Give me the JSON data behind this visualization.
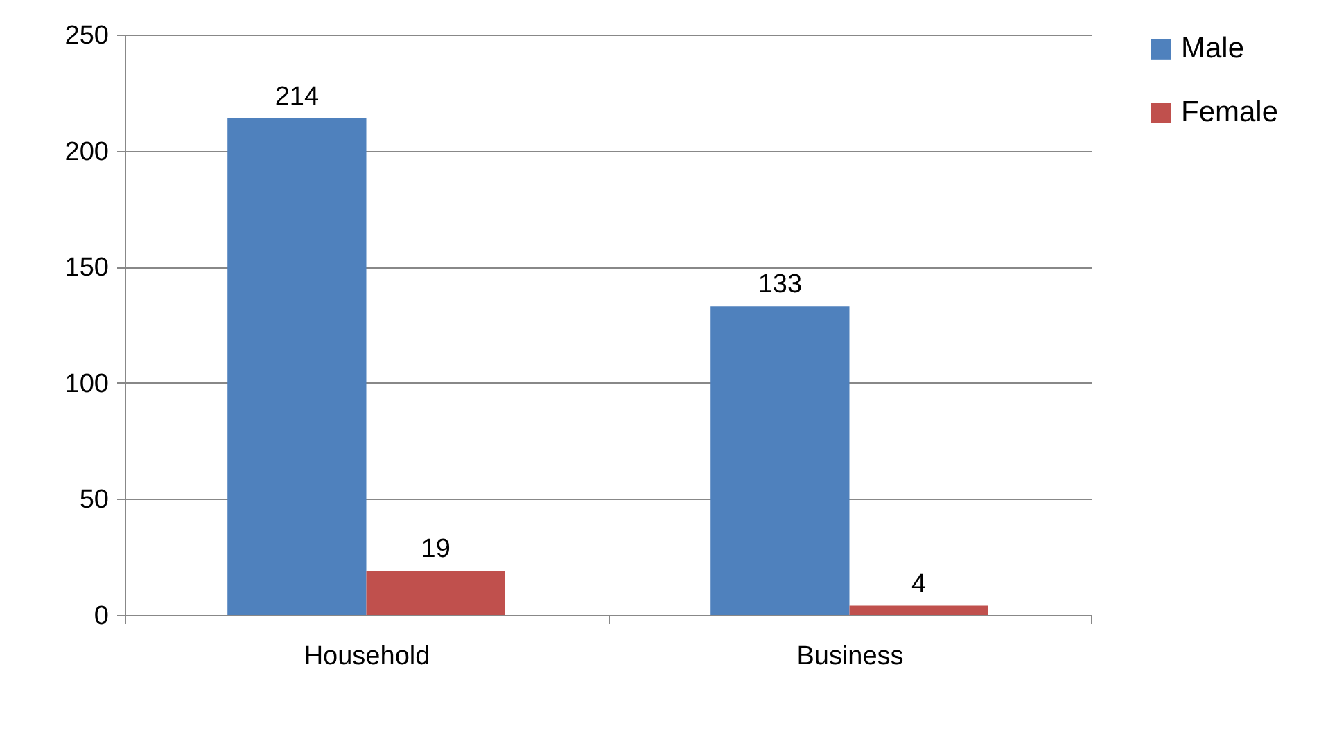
{
  "chart_data": {
    "type": "bar",
    "categories": [
      "Household",
      "Business"
    ],
    "series": [
      {
        "name": "Male",
        "color": "#4f81bd",
        "values": [
          214,
          133
        ]
      },
      {
        "name": "Female",
        "color": "#c0504d",
        "values": [
          19,
          4
        ]
      }
    ],
    "ylim": [
      0,
      250
    ],
    "yticks": [
      0,
      50,
      100,
      150,
      200,
      250
    ],
    "grid": "y",
    "legend": "right",
    "data_labels": true
  }
}
